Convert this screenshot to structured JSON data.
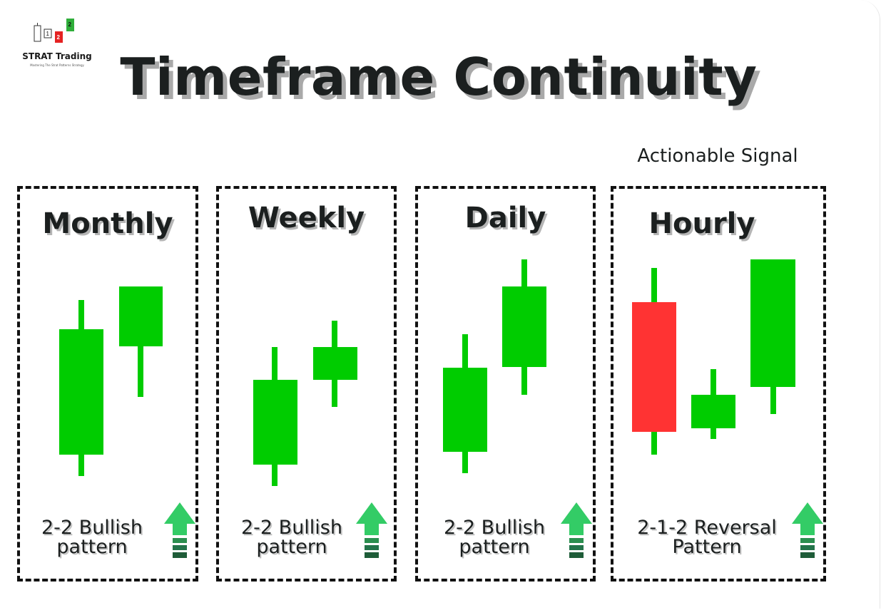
{
  "logo": {
    "name": "STRAT Trading",
    "tagline": "Mastering The Strat Patterns Strategy",
    "bar_labels": [
      "1",
      "2",
      "2"
    ]
  },
  "title": "Timeframe Continuity",
  "signal_label": "Actionable Signal",
  "colors": {
    "bull": "#00cc00",
    "bear": "#ff3333",
    "arrow": "#33cc66",
    "arrow_dark": "#1e5c38"
  },
  "panels": [
    {
      "title": "Monthly",
      "caption_line1": "2-2 Bullish",
      "caption_line2": "pattern"
    },
    {
      "title": "Weekly",
      "caption_line1": "2-2 Bullish",
      "caption_line2": "pattern"
    },
    {
      "title": "Daily",
      "caption_line1": "2-2 Bullish",
      "caption_line2": "pattern"
    },
    {
      "title": "Hourly",
      "caption_line1": "2-1-2 Reversal",
      "caption_line2": "Pattern"
    }
  ]
}
